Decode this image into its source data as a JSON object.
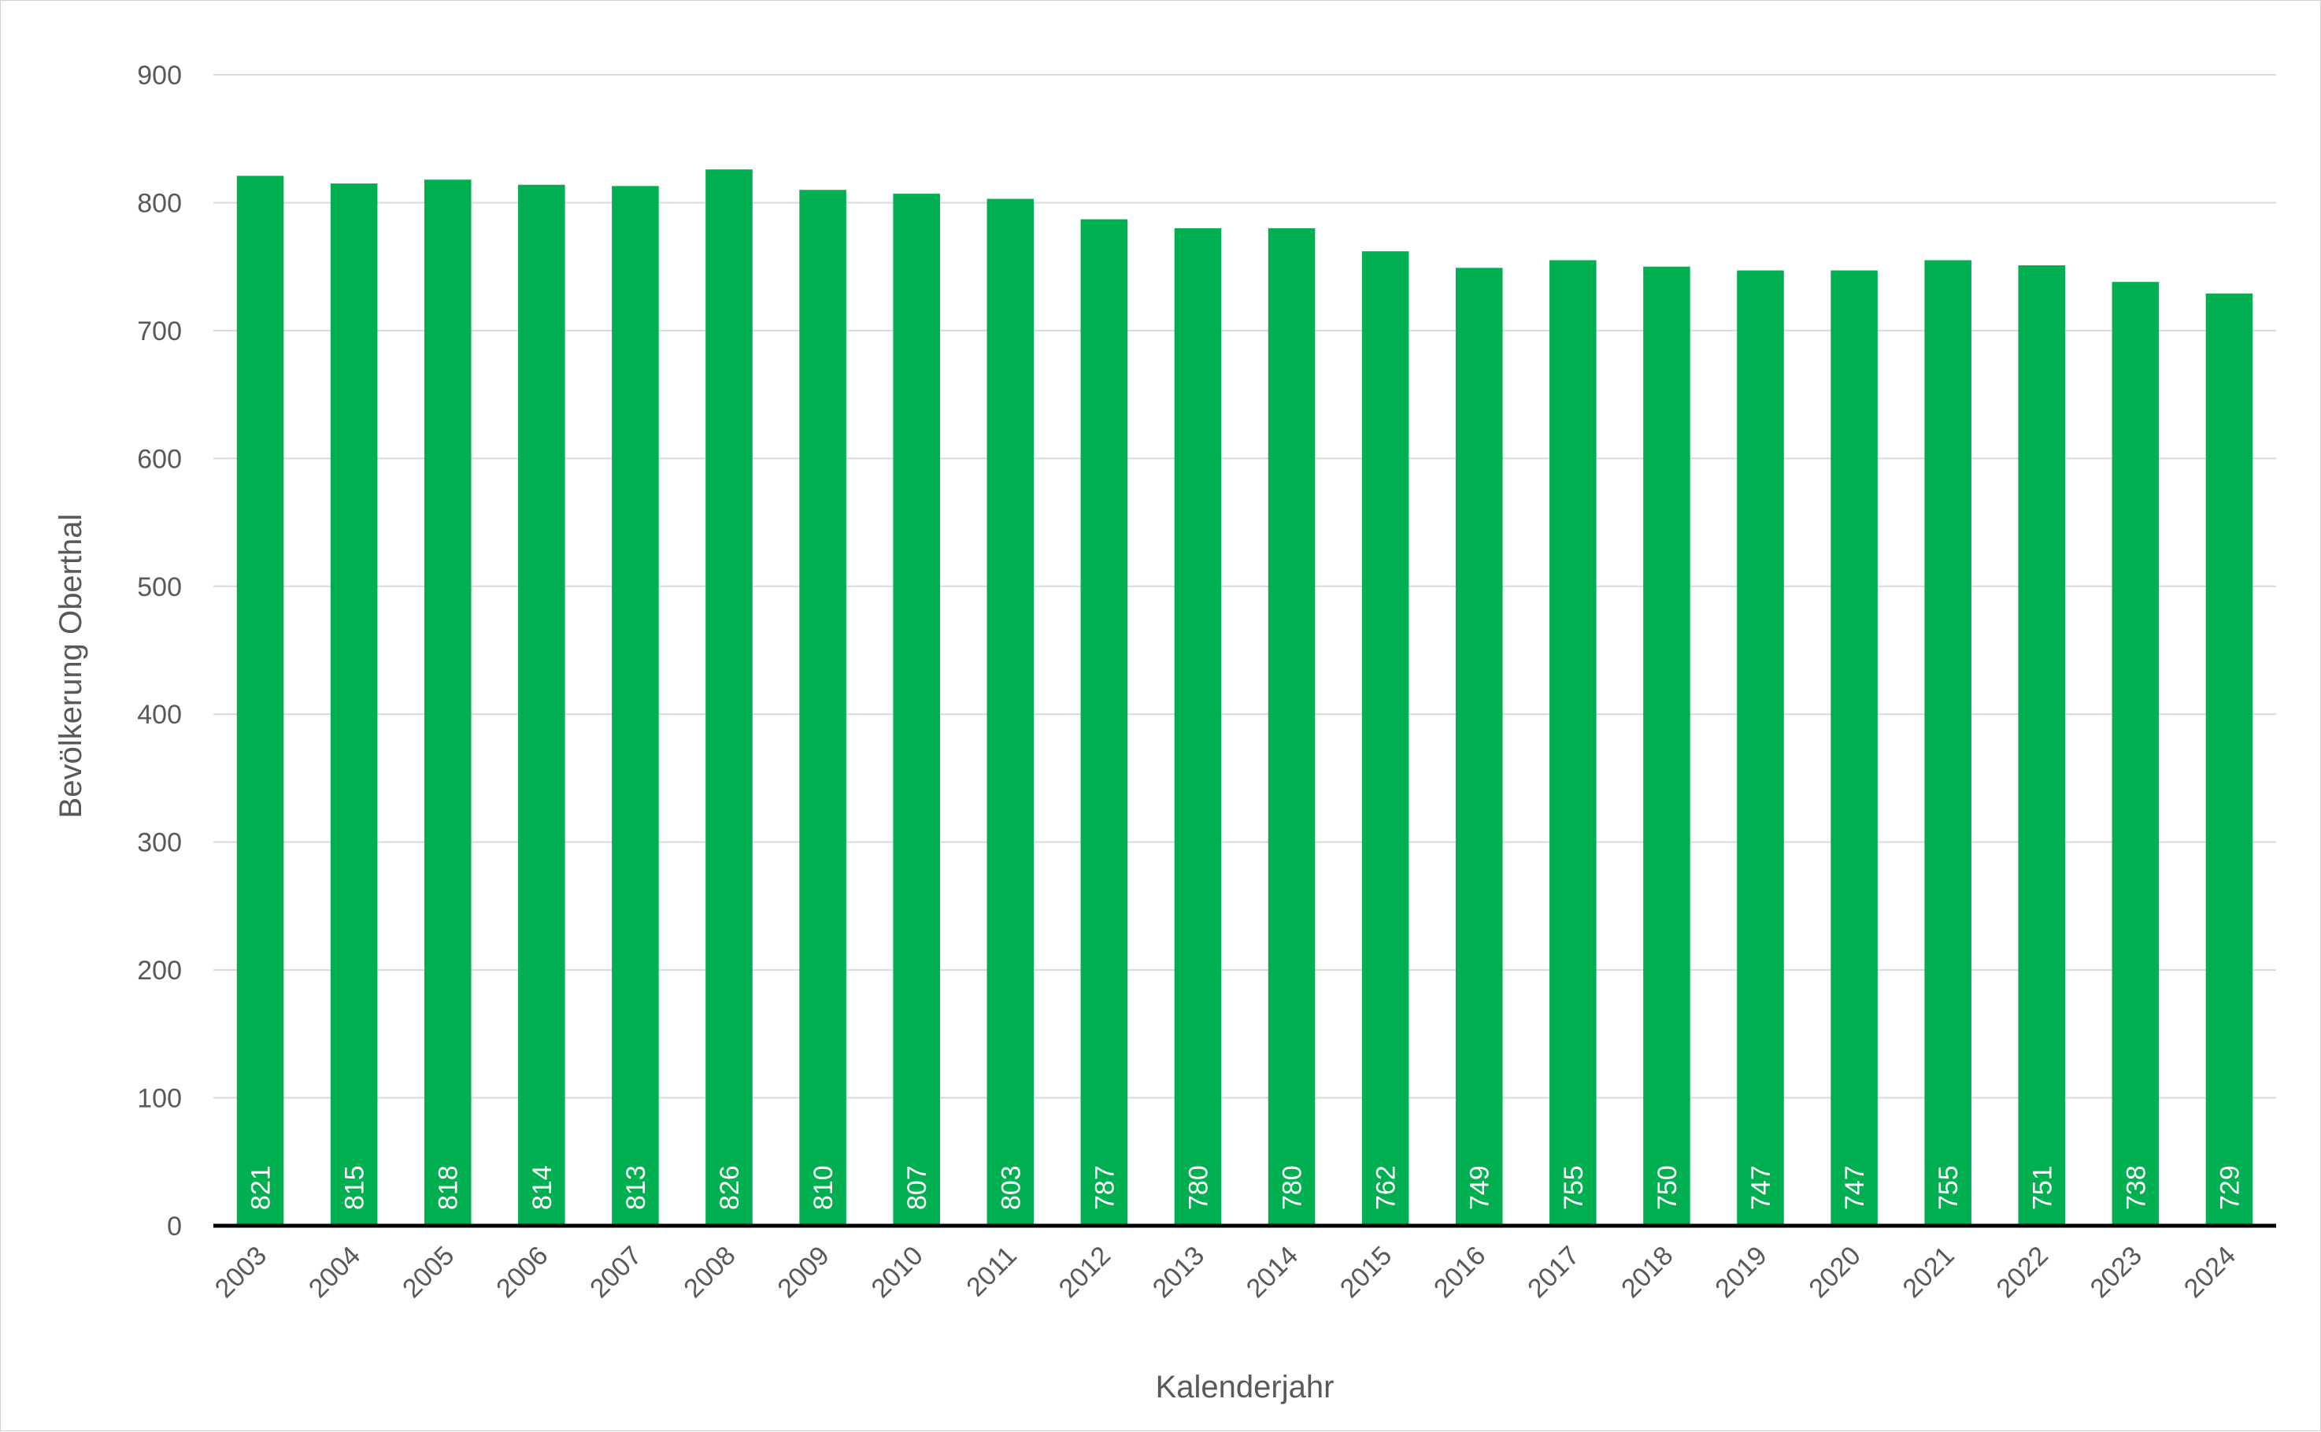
{
  "chart_data": {
    "type": "bar",
    "title": "",
    "xlabel": "Kalenderjahr",
    "ylabel": "Bevölkerung Oberthal",
    "ylim": [
      0,
      900
    ],
    "yticks": [
      0,
      100,
      200,
      300,
      400,
      500,
      600,
      700,
      800,
      900
    ],
    "grid": true,
    "legend": "none",
    "categories": [
      "2003",
      "2004",
      "2005",
      "2006",
      "2007",
      "2008",
      "2009",
      "2010",
      "2011",
      "2012",
      "2013",
      "2014",
      "2015",
      "2016",
      "2017",
      "2018",
      "2019",
      "2020",
      "2021",
      "2022",
      "2023",
      "2024"
    ],
    "values": [
      821,
      815,
      818,
      814,
      813,
      826,
      810,
      807,
      803,
      787,
      780,
      780,
      762,
      749,
      755,
      750,
      747,
      747,
      755,
      751,
      738,
      729
    ],
    "colors": {
      "bar": "#00b050",
      "grid": "#d9d9d9",
      "axis": "#000000",
      "text": "#595959",
      "bar_label": "#ffffff"
    }
  }
}
